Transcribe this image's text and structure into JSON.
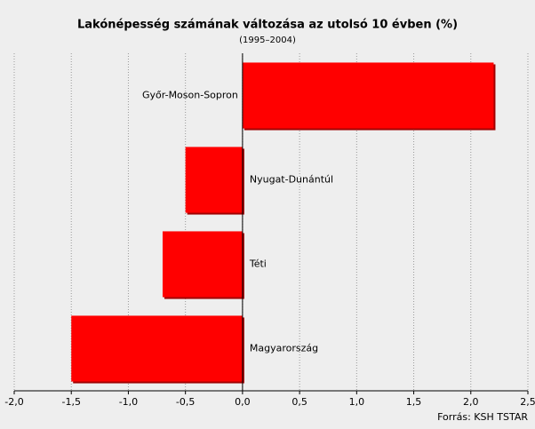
{
  "chart_data": {
    "type": "hbar",
    "title": "Lakónépesség számának változása az utolsó 10 évben (%)",
    "subtitle": "(1995–2004)",
    "source": "Forrás: KSH TSTAR",
    "categories": [
      "Győr-Moson-Sopron",
      "Nyugat-Dunántúl",
      "Téti",
      "Magyarország"
    ],
    "values": [
      2.2,
      -0.5,
      -0.7,
      -1.5
    ],
    "color": "#ff0000",
    "xlim": [
      -2,
      2.5
    ],
    "xticks": [
      {
        "value": -2,
        "label": "-2,0"
      },
      {
        "value": -1.5,
        "label": "-1,5"
      },
      {
        "value": -1,
        "label": "-1,0"
      },
      {
        "value": -0.5,
        "label": "-0,5"
      },
      {
        "value": 0,
        "label": "0,0"
      },
      {
        "value": 0.5,
        "label": "0,5"
      },
      {
        "value": 1,
        "label": "1,0"
      },
      {
        "value": 1.5,
        "label": "1,5"
      },
      {
        "value": 2,
        "label": "2,0"
      },
      {
        "value": 2.5,
        "label": "2,5"
      }
    ],
    "grid": true
  }
}
